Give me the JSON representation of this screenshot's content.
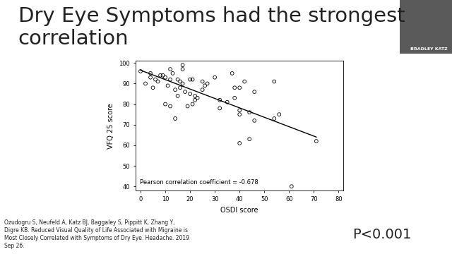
{
  "chart_data": {
    "type": "scatter",
    "title": "Dry Eye Symptoms had the strongest correlation",
    "x_label": "OSDI score",
    "y_label": "VFQ 25 score",
    "annotation": "Pearson correlation coefficient = -0.678",
    "x": [
      0,
      2,
      4,
      4,
      5,
      6,
      7,
      8,
      9,
      10,
      10,
      11,
      12,
      12,
      12,
      13,
      14,
      14,
      15,
      15,
      16,
      16,
      17,
      17,
      17,
      18,
      19,
      20,
      20,
      21,
      21,
      22,
      22,
      23,
      25,
      25,
      26,
      27,
      30,
      32,
      32,
      35,
      37,
      38,
      38,
      40,
      40,
      40,
      40,
      42,
      44,
      44,
      46,
      46,
      54,
      54,
      56,
      61,
      71
    ],
    "values": [
      96,
      90,
      95,
      93,
      88,
      92,
      91,
      94,
      94,
      93,
      80,
      89,
      92,
      97,
      79,
      95,
      87,
      73,
      92,
      84,
      88,
      91,
      99,
      97,
      90,
      86,
      79,
      92,
      85,
      92,
      80,
      82,
      84,
      83,
      91,
      87,
      89,
      90,
      93,
      82,
      78,
      81,
      95,
      88,
      83,
      88,
      77,
      75,
      61,
      91,
      76,
      63,
      86,
      72,
      91,
      73,
      75,
      40,
      62
    ],
    "trend_line": {
      "x": [
        0,
        71
      ],
      "values": [
        96.5,
        64
      ]
    },
    "color": "#000000",
    "marker": "o",
    "xlim": [
      -2,
      82
    ],
    "xticks": [
      0,
      10,
      20,
      30,
      40,
      50,
      60,
      70,
      80
    ],
    "ylim": [
      38,
      101
    ],
    "yticks": [
      40,
      50,
      60,
      70,
      80,
      90,
      100
    ],
    "grid": false
  },
  "slide": {
    "citation": "Ozudogru S, Neufeld A, Katz BJ, Baggaley S, Pippitt K, Zhang Y,\nDigre KB. Reduced Visual Quality of Life Associated with Migraine is\nMost Closely Correlated with Symptoms of Dry Eye. Headache. 2019\nSep 26.",
    "p_value": "P<0.001",
    "speaker": "BRADLEY KATZ"
  }
}
